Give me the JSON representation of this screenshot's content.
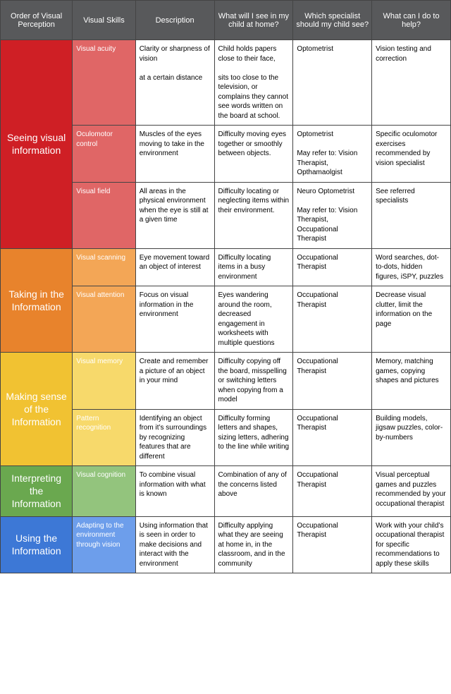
{
  "headers": [
    "Order of Visual Perception",
    "Visual Skills",
    "Description",
    "What will I see in my child at home?",
    "Which specialist should my child see?",
    "What can I do to help?"
  ],
  "header_bg": "#58595b",
  "header_text_color": "#ffffff",
  "sections": [
    {
      "order": "Seeing visual information",
      "order_bg": "#cf1f25",
      "skill_bg": "#e06666",
      "rows": [
        {
          "skill": "Visual acuity",
          "desc": "Clarity or sharpness of vision\n\nat a certain distance",
          "see": "Child holds papers close to their face,\n\nsits too close to the television, or complains they cannot see words written on the board at school.",
          "spec": "Optometrist",
          "help": "Vision testing and correction"
        },
        {
          "skill": "Oculomotor control",
          "desc": "Muscles of the eyes moving to take in the environment",
          "see": "Difficulty moving eyes together or smoothly between objects.",
          "spec": "Optometrist\n\nMay refer to: Vision Therapist, Opthamaolgist",
          "help": "Specific oculomotor exercises recommended by vision specialist"
        },
        {
          "skill": "Visual field",
          "desc": "All areas in the physical environment when the eye is still at a given time",
          "see": "Difficulty locating or neglecting items within their environment.",
          "spec": "Neuro Optometrist\n\nMay refer to: Vision Therapist, Occupational Therapist",
          "help": "See referred specialists"
        }
      ]
    },
    {
      "order": "Taking in the Information",
      "order_bg": "#e8832c",
      "skill_bg": "#f3a656",
      "rows": [
        {
          "skill": "Visual scanning",
          "desc": "Eye movement toward an object of interest",
          "see": "Difficulty locating items in a busy environment",
          "spec": "Occupational Therapist",
          "help": "Word searches, dot-to-dots, hidden figures, iSPY, puzzles"
        },
        {
          "skill": "Visual attention",
          "desc": "Focus on visual information in the environment",
          "see": "Eyes wandering around the room, decreased engagement in worksheets with multiple questions",
          "spec": "Occupational Therapist",
          "help": "Decrease visual clutter, limit the information on the page"
        }
      ]
    },
    {
      "order": "Making sense of the Information",
      "order_bg": "#f1c232",
      "skill_bg": "#f7d96b",
      "rows": [
        {
          "skill": "Visual memory",
          "desc": "Create and remember a picture of an object in your mind",
          "see": "Difficulty copying off the board, misspelling or switching letters when copying from a model",
          "spec": "Occupational Therapist",
          "help": "Memory, matching games, copying shapes and pictures"
        },
        {
          "skill": "Pattern recognition",
          "desc": "Identifying an object from it’s surroundings by recognizing features that are different",
          "see": "Difficulty forming letters and shapes, sizing letters, adhering to the line while writing",
          "spec": "Occupational Therapist",
          "help": "Building models, jigsaw puzzles, color-by-numbers"
        }
      ]
    },
    {
      "order": "Interpreting the Information",
      "order_bg": "#6aa84f",
      "skill_bg": "#93c47d",
      "rows": [
        {
          "skill": "Visual cognition",
          "desc": "To combine visual information with what is known",
          "see": "Combination of any of the concerns listed above",
          "spec": "Occupational Therapist",
          "help": "Visual perceptual games and puzzles recommended by your occupational therapist"
        }
      ]
    },
    {
      "order": "Using the Information",
      "order_bg": "#3d78d6",
      "skill_bg": "#6d9eeb",
      "rows": [
        {
          "skill": "Adapting to the environment through vision",
          "desc": "Using information that is seen in order to make decisions and interact with the environment",
          "see": "Difficulty applying what they are seeing at home in, in the classroom, and in the community",
          "spec": "Occupational Therapist",
          "help": "Work with your child’s occupational therapist for specific recommendations to apply these skills"
        }
      ]
    }
  ]
}
